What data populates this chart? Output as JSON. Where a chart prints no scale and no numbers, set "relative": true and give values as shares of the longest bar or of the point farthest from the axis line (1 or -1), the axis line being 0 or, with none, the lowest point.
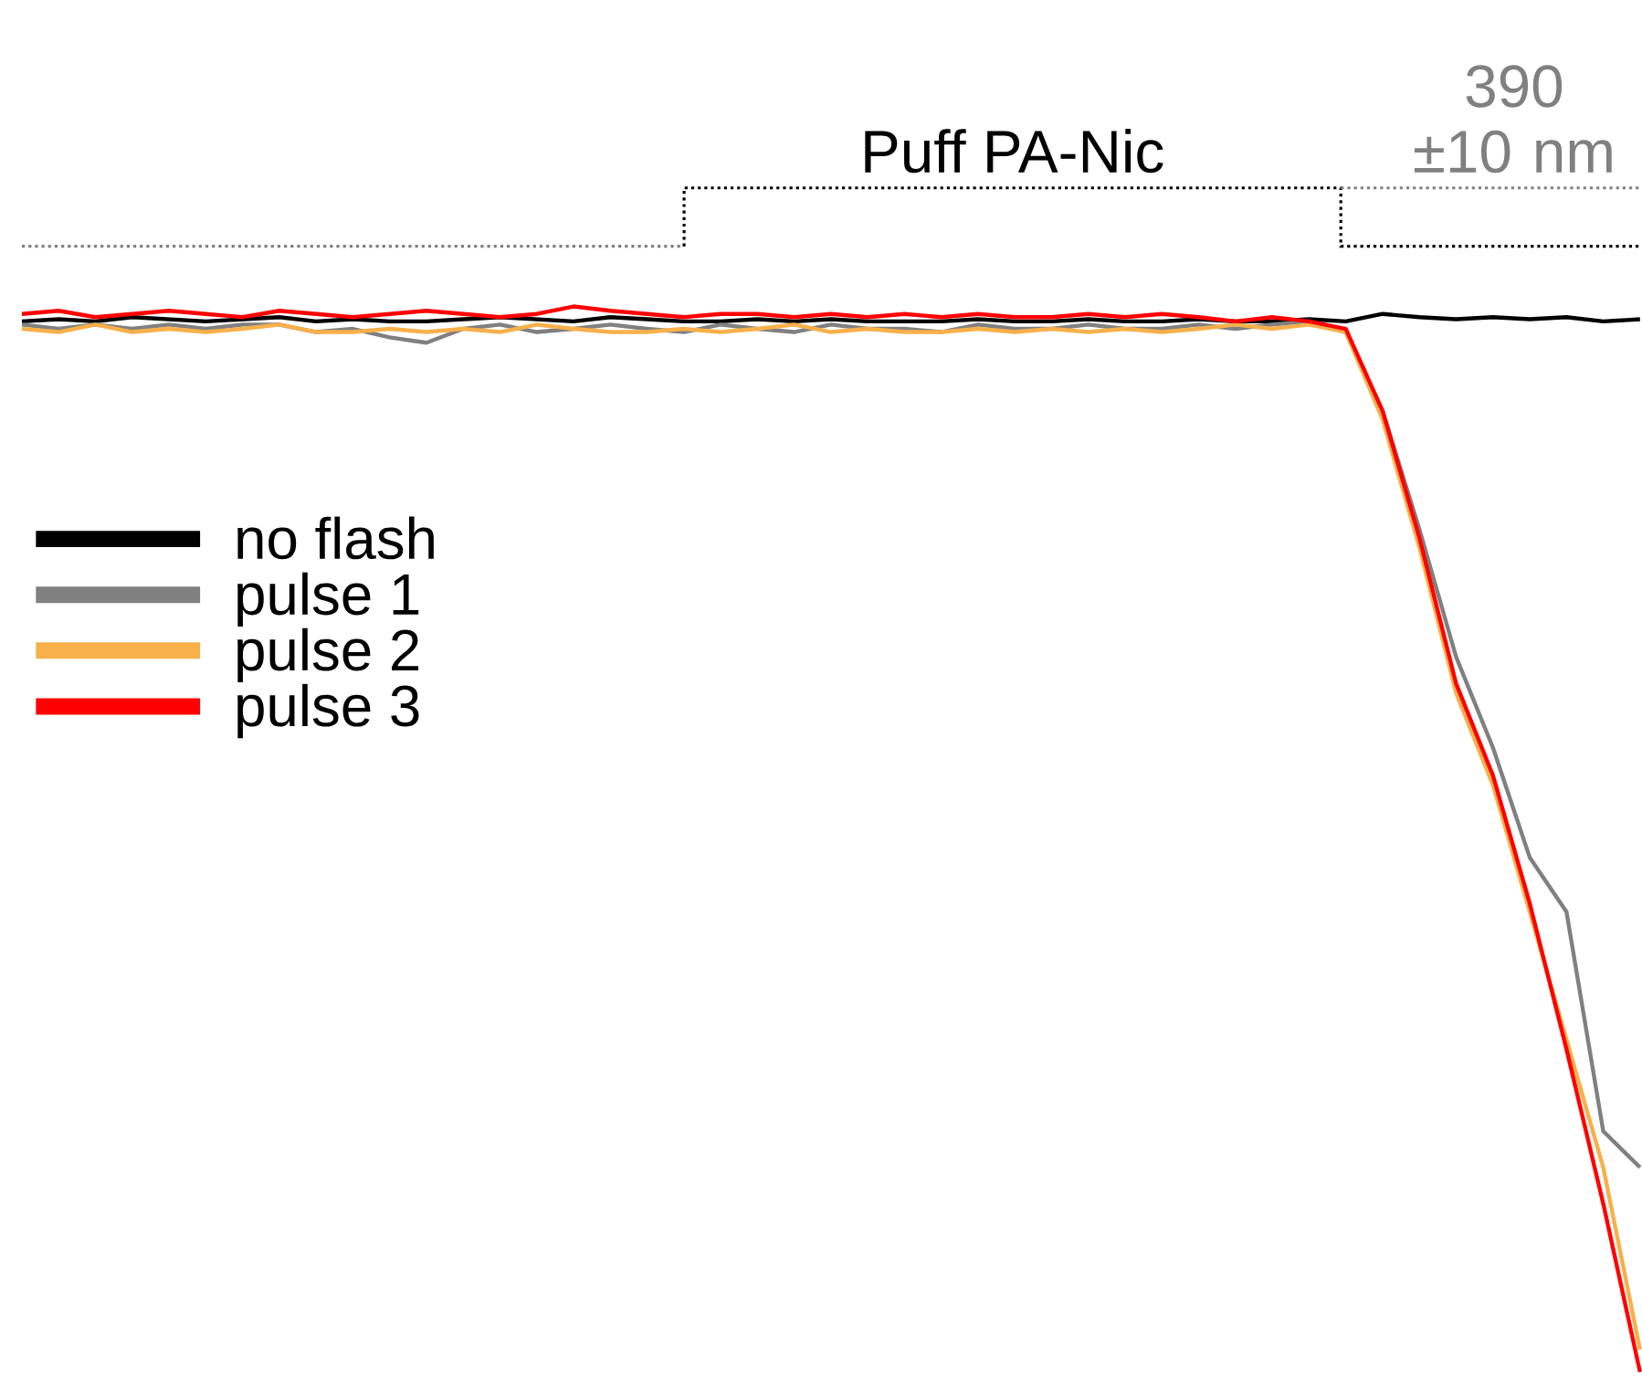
{
  "chart_data": {
    "type": "line",
    "relative": true,
    "legend": "left",
    "line_style": "solid",
    "categories": [
      null,
      null,
      null,
      null,
      null,
      null,
      null,
      null,
      null,
      null,
      null,
      null,
      null,
      null,
      null,
      null,
      null,
      null,
      null,
      null,
      null,
      null,
      null,
      null,
      null,
      null,
      null,
      null,
      null,
      null,
      null,
      null,
      null,
      null,
      null,
      null,
      null,
      null,
      null,
      null,
      null,
      null,
      null,
      null,
      null
    ],
    "series": [
      {
        "name": "no flash",
        "color": "#000000",
        "values": [
          0.986,
          0.988,
          0.986,
          0.99,
          0.988,
          0.986,
          0.988,
          0.99,
          0.986,
          0.988,
          0.986,
          0.986,
          0.988,
          0.99,
          0.988,
          0.986,
          0.99,
          0.988,
          0.986,
          0.986,
          0.988,
          0.986,
          0.988,
          0.986,
          0.986,
          0.986,
          0.988,
          0.986,
          0.986,
          0.988,
          0.986,
          0.986,
          0.988,
          0.986,
          0.986,
          0.988,
          0.986,
          0.993,
          0.99,
          0.988,
          0.99,
          0.988,
          0.99,
          0.986,
          0.988
        ]
      },
      {
        "name": "pulse 1",
        "color": "#808080",
        "values": [
          0.983,
          0.979,
          0.983,
          0.979,
          0.983,
          0.979,
          0.983,
          0.983,
          0.976,
          0.979,
          0.971,
          0.966,
          0.979,
          0.983,
          0.976,
          0.979,
          0.983,
          0.979,
          0.976,
          0.983,
          0.979,
          0.976,
          0.983,
          0.979,
          0.979,
          0.976,
          0.983,
          0.979,
          0.979,
          0.983,
          0.979,
          0.979,
          0.983,
          0.979,
          0.983,
          0.986,
          0.976,
          0.902,
          0.791,
          0.671,
          0.586,
          0.483,
          0.432,
          0.226,
          0.192
        ]
      },
      {
        "name": "pulse 2",
        "color": "#f7b04a",
        "values": [
          0.979,
          0.976,
          0.983,
          0.976,
          0.979,
          0.976,
          0.979,
          0.983,
          0.976,
          0.976,
          0.979,
          0.976,
          0.979,
          0.976,
          0.983,
          0.979,
          0.976,
          0.976,
          0.979,
          0.976,
          0.979,
          0.983,
          0.976,
          0.979,
          0.976,
          0.976,
          0.979,
          0.976,
          0.979,
          0.976,
          0.979,
          0.976,
          0.979,
          0.983,
          0.979,
          0.983,
          0.976,
          0.894,
          0.774,
          0.637,
          0.551,
          0.432,
          0.312,
          0.192,
          0.021
        ]
      },
      {
        "name": "pulse 3",
        "color": "#ff0000",
        "values": [
          0.993,
          0.996,
          0.99,
          0.993,
          0.996,
          0.993,
          0.99,
          0.996,
          0.993,
          0.99,
          0.993,
          0.996,
          0.993,
          0.99,
          0.993,
          1.0,
          0.996,
          0.993,
          0.99,
          0.993,
          0.993,
          0.99,
          0.993,
          0.99,
          0.993,
          0.99,
          0.993,
          0.99,
          0.99,
          0.993,
          0.99,
          0.993,
          0.99,
          0.986,
          0.99,
          0.986,
          0.979,
          0.902,
          0.783,
          0.646,
          0.56,
          0.44,
          0.303,
          0.158,
          0.0
        ]
      }
    ],
    "annotations": [
      "Puff PA-Nic",
      "390 ±10 nm"
    ]
  }
}
